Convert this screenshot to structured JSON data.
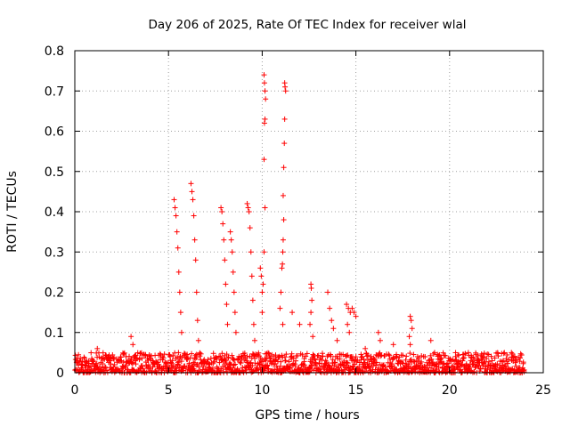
{
  "chart_data": {
    "type": "scatter",
    "title": "Day 206 of 2025, Rate Of TEC Index for receiver wlal",
    "xlabel": "GPS time / hours",
    "ylabel": "ROTI / TECUs",
    "xlim": [
      0,
      25
    ],
    "ylim": [
      0,
      0.8
    ],
    "xticks": [
      0,
      5,
      10,
      15,
      20,
      25
    ],
    "yticks": [
      0,
      0.1,
      0.2,
      0.3,
      0.4,
      0.5,
      0.6,
      0.7,
      0.8
    ],
    "xtick_labels": [
      "0",
      "5",
      "10",
      "15",
      "20",
      "25"
    ],
    "ytick_labels": [
      "0",
      "0.1",
      "0.2",
      "0.3",
      "0.4",
      "0.5",
      "0.6",
      "0.7",
      "0.8"
    ],
    "grid": true,
    "marker": "+",
    "color": "#ff0000",
    "series": [
      {
        "baseline": {
          "x_range": [
            0,
            24
          ],
          "typical_max": 0.05,
          "typical_min": 0.0
        },
        "points": [
          {
            "x": 1.2,
            "y": 0.06
          },
          {
            "x": 3.0,
            "y": 0.09
          },
          {
            "x": 3.1,
            "y": 0.07
          },
          {
            "x": 5.3,
            "y": 0.43
          },
          {
            "x": 5.35,
            "y": 0.41
          },
          {
            "x": 5.4,
            "y": 0.39
          },
          {
            "x": 5.45,
            "y": 0.35
          },
          {
            "x": 5.5,
            "y": 0.31
          },
          {
            "x": 5.55,
            "y": 0.25
          },
          {
            "x": 5.6,
            "y": 0.2
          },
          {
            "x": 5.65,
            "y": 0.15
          },
          {
            "x": 5.7,
            "y": 0.1
          },
          {
            "x": 6.2,
            "y": 0.47
          },
          {
            "x": 6.25,
            "y": 0.45
          },
          {
            "x": 6.3,
            "y": 0.43
          },
          {
            "x": 6.35,
            "y": 0.39
          },
          {
            "x": 6.4,
            "y": 0.33
          },
          {
            "x": 6.45,
            "y": 0.28
          },
          {
            "x": 6.5,
            "y": 0.2
          },
          {
            "x": 6.55,
            "y": 0.13
          },
          {
            "x": 6.6,
            "y": 0.08
          },
          {
            "x": 7.8,
            "y": 0.41
          },
          {
            "x": 7.85,
            "y": 0.4
          },
          {
            "x": 7.9,
            "y": 0.37
          },
          {
            "x": 7.95,
            "y": 0.33
          },
          {
            "x": 8.0,
            "y": 0.28
          },
          {
            "x": 8.05,
            "y": 0.22
          },
          {
            "x": 8.1,
            "y": 0.17
          },
          {
            "x": 8.15,
            "y": 0.12
          },
          {
            "x": 8.3,
            "y": 0.35
          },
          {
            "x": 8.35,
            "y": 0.33
          },
          {
            "x": 8.4,
            "y": 0.3
          },
          {
            "x": 8.45,
            "y": 0.25
          },
          {
            "x": 8.5,
            "y": 0.2
          },
          {
            "x": 8.55,
            "y": 0.15
          },
          {
            "x": 8.6,
            "y": 0.1
          },
          {
            "x": 9.2,
            "y": 0.42
          },
          {
            "x": 9.25,
            "y": 0.41
          },
          {
            "x": 9.3,
            "y": 0.4
          },
          {
            "x": 9.35,
            "y": 0.36
          },
          {
            "x": 9.4,
            "y": 0.3
          },
          {
            "x": 9.45,
            "y": 0.24
          },
          {
            "x": 9.5,
            "y": 0.18
          },
          {
            "x": 9.55,
            "y": 0.12
          },
          {
            "x": 9.6,
            "y": 0.08
          },
          {
            "x": 9.9,
            "y": 0.26
          },
          {
            "x": 9.95,
            "y": 0.24
          },
          {
            "x": 10.0,
            "y": 0.2
          },
          {
            "x": 10.1,
            "y": 0.74
          },
          {
            "x": 10.12,
            "y": 0.72
          },
          {
            "x": 10.15,
            "y": 0.7
          },
          {
            "x": 10.18,
            "y": 0.68
          },
          {
            "x": 10.15,
            "y": 0.63
          },
          {
            "x": 10.12,
            "y": 0.62
          },
          {
            "x": 10.1,
            "y": 0.53
          },
          {
            "x": 10.15,
            "y": 0.41
          },
          {
            "x": 10.1,
            "y": 0.3
          },
          {
            "x": 10.05,
            "y": 0.22
          },
          {
            "x": 10.0,
            "y": 0.15
          },
          {
            "x": 11.2,
            "y": 0.72
          },
          {
            "x": 11.22,
            "y": 0.71
          },
          {
            "x": 11.25,
            "y": 0.7
          },
          {
            "x": 11.2,
            "y": 0.63
          },
          {
            "x": 11.18,
            "y": 0.57
          },
          {
            "x": 11.15,
            "y": 0.51
          },
          {
            "x": 11.12,
            "y": 0.44
          },
          {
            "x": 11.15,
            "y": 0.38
          },
          {
            "x": 11.12,
            "y": 0.33
          },
          {
            "x": 11.1,
            "y": 0.3
          },
          {
            "x": 11.08,
            "y": 0.27
          },
          {
            "x": 11.05,
            "y": 0.26
          },
          {
            "x": 11.0,
            "y": 0.2
          },
          {
            "x": 10.95,
            "y": 0.16
          },
          {
            "x": 11.1,
            "y": 0.12
          },
          {
            "x": 11.6,
            "y": 0.15
          },
          {
            "x": 12.0,
            "y": 0.12
          },
          {
            "x": 12.6,
            "y": 0.22
          },
          {
            "x": 12.62,
            "y": 0.21
          },
          {
            "x": 12.65,
            "y": 0.18
          },
          {
            "x": 12.6,
            "y": 0.15
          },
          {
            "x": 12.55,
            "y": 0.12
          },
          {
            "x": 12.7,
            "y": 0.09
          },
          {
            "x": 13.5,
            "y": 0.2
          },
          {
            "x": 13.6,
            "y": 0.16
          },
          {
            "x": 13.7,
            "y": 0.13
          },
          {
            "x": 13.8,
            "y": 0.11
          },
          {
            "x": 14.0,
            "y": 0.08
          },
          {
            "x": 14.5,
            "y": 0.17
          },
          {
            "x": 14.6,
            "y": 0.16
          },
          {
            "x": 14.7,
            "y": 0.15
          },
          {
            "x": 14.8,
            "y": 0.16
          },
          {
            "x": 14.9,
            "y": 0.15
          },
          {
            "x": 15.0,
            "y": 0.14
          },
          {
            "x": 14.55,
            "y": 0.12
          },
          {
            "x": 14.65,
            "y": 0.1
          },
          {
            "x": 15.5,
            "y": 0.06
          },
          {
            "x": 16.2,
            "y": 0.1
          },
          {
            "x": 16.3,
            "y": 0.08
          },
          {
            "x": 17.0,
            "y": 0.07
          },
          {
            "x": 17.9,
            "y": 0.14
          },
          {
            "x": 17.95,
            "y": 0.13
          },
          {
            "x": 18.0,
            "y": 0.11
          },
          {
            "x": 17.85,
            "y": 0.09
          },
          {
            "x": 17.9,
            "y": 0.07
          },
          {
            "x": 19.0,
            "y": 0.08
          },
          {
            "x": 19.2,
            "y": 0.05
          },
          {
            "x": 21.0,
            "y": 0.05
          },
          {
            "x": 23.3,
            "y": 0.05
          }
        ]
      }
    ]
  }
}
